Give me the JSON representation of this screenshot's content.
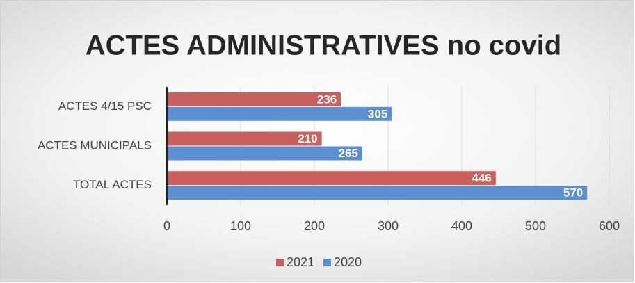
{
  "chart_data": {
    "type": "hbar",
    "title": "ACTES ADMINISTRATIVES no covid",
    "categories": [
      "ACTES 4/15 PSC",
      "ACTES MUNICIPALS",
      "TOTAL ACTES"
    ],
    "series": [
      {
        "name": "2021",
        "color": "#c9605e",
        "values": [
          236,
          210,
          446
        ]
      },
      {
        "name": "2020",
        "color": "#5b8fd0",
        "values": [
          305,
          265,
          570
        ]
      }
    ],
    "xlim": [
      0,
      600
    ],
    "xticks": [
      0,
      100,
      200,
      300,
      400,
      500,
      600
    ],
    "grid": true,
    "legend": "bottom"
  }
}
